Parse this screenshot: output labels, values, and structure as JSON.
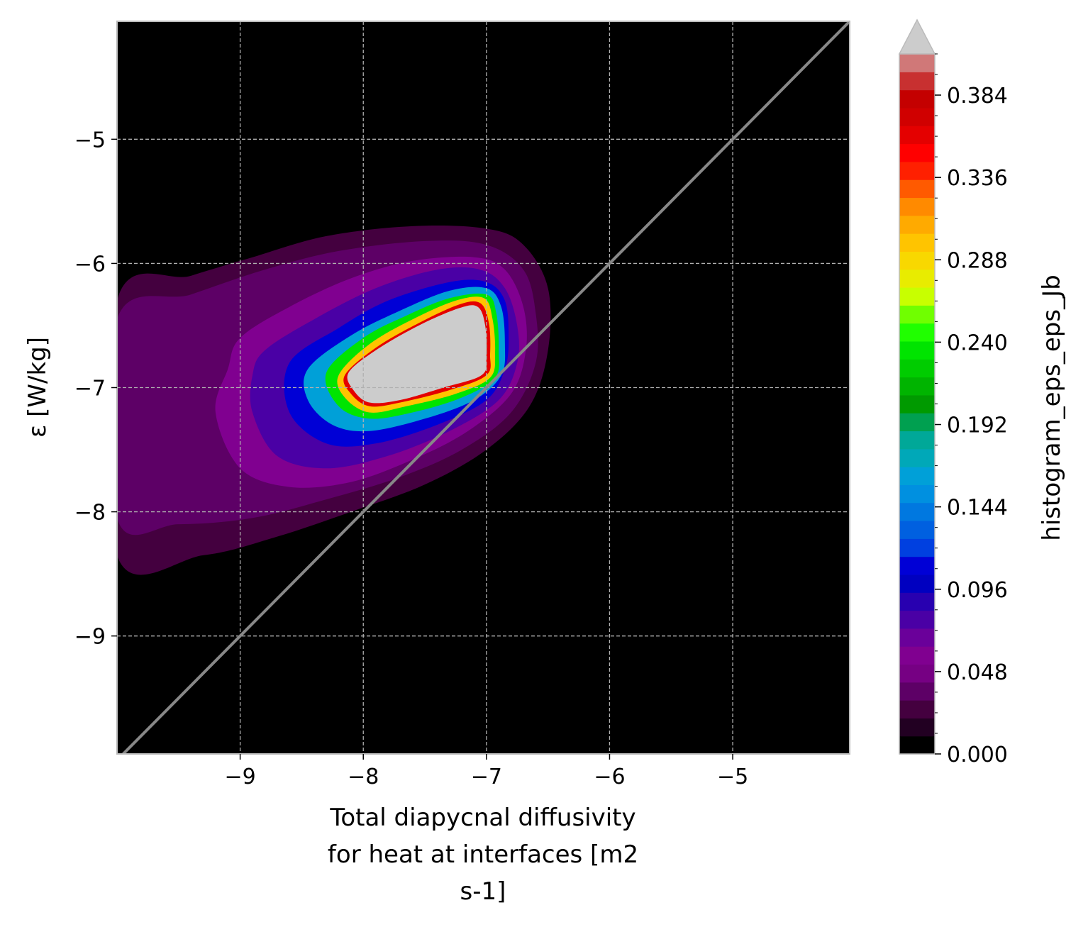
{
  "chart_data": {
    "type": "heatmap",
    "title": "",
    "xlabel_lines": [
      "Total diapycnal diffusivity",
      "for heat at interfaces [m2",
      "s-1]"
    ],
    "ylabel": "ε [W/kg]",
    "xlim": [
      -10,
      -4.05
    ],
    "ylim": [
      -9.95,
      -4.05
    ],
    "xticks": [
      -9,
      -8,
      -7,
      -6,
      -5
    ],
    "yticks": [
      -9,
      -8,
      -7,
      -6,
      -5
    ],
    "xtick_labels": [
      "−9",
      "−8",
      "−7",
      "−6",
      "−5"
    ],
    "ytick_labels": [
      "−9",
      "−8",
      "−7",
      "−6",
      "−5"
    ],
    "grid": true,
    "reference_line": {
      "from": [
        -10,
        -10
      ],
      "to": [
        -4,
        -4
      ],
      "color": "#888888"
    },
    "colorbar": {
      "label": "histogram_eps_eps_Jb",
      "vmin": 0.0,
      "vmax": 0.408,
      "extend": "max",
      "over_color": "#cccccc",
      "ticks": [
        0.0,
        0.048,
        0.096,
        0.144,
        0.192,
        0.24,
        0.288,
        0.336,
        0.384
      ],
      "tick_labels": [
        "0.000",
        "0.048",
        "0.096",
        "0.144",
        "0.192",
        "0.240",
        "0.288",
        "0.336",
        "0.384"
      ],
      "colors": [
        "#000000",
        "#220022",
        "#44003f",
        "#5d0066",
        "#760083",
        "#800090",
        "#6a009a",
        "#4a00a5",
        "#2800b0",
        "#0000c0",
        "#0000d6",
        "#0040e0",
        "#0060e0",
        "#0078e0",
        "#0090e0",
        "#00a0d8",
        "#00a8b8",
        "#00a898",
        "#00a050",
        "#009a00",
        "#00b400",
        "#00cc00",
        "#00e400",
        "#20ff00",
        "#70ff00",
        "#c8ff00",
        "#e8ec00",
        "#f8d800",
        "#ffc400",
        "#ffaa00",
        "#ff8a00",
        "#ff5a00",
        "#ff2000",
        "#ff0000",
        "#e40000",
        "#d00000",
        "#c40000",
        "#c83030",
        "#d07878"
      ]
    },
    "contours": [
      {
        "level": 0.008,
        "points": [
          [
            -10,
            -6.1
          ],
          [
            -9.3,
            -5.95
          ],
          [
            -8.8,
            -5.82
          ],
          [
            -8.3,
            -5.7
          ],
          [
            -7.5,
            -5.6
          ],
          [
            -6.9,
            -5.6
          ],
          [
            -6.6,
            -5.65
          ],
          [
            -6.4,
            -5.95
          ],
          [
            -6.38,
            -6.4
          ],
          [
            -6.45,
            -6.9
          ],
          [
            -6.7,
            -7.35
          ],
          [
            -7.1,
            -7.7
          ],
          [
            -7.6,
            -7.95
          ],
          [
            -8.2,
            -8.2
          ],
          [
            -8.7,
            -8.4
          ],
          [
            -9.3,
            -8.55
          ],
          [
            -10,
            -8.6
          ]
        ]
      },
      {
        "level": 0.024,
        "points": [
          [
            -10,
            -6.3
          ],
          [
            -9.4,
            -6.1
          ],
          [
            -8.9,
            -5.95
          ],
          [
            -8.3,
            -5.78
          ],
          [
            -7.6,
            -5.7
          ],
          [
            -7.0,
            -5.72
          ],
          [
            -6.7,
            -5.85
          ],
          [
            -6.5,
            -6.2
          ],
          [
            -6.5,
            -6.7
          ],
          [
            -6.65,
            -7.15
          ],
          [
            -7.0,
            -7.5
          ],
          [
            -7.5,
            -7.78
          ],
          [
            -8.1,
            -8.0
          ],
          [
            -8.7,
            -8.2
          ],
          [
            -9.3,
            -8.35
          ],
          [
            -10,
            -8.35
          ]
        ]
      },
      {
        "level": 0.04,
        "points": [
          [
            -10,
            -6.45
          ],
          [
            -9.4,
            -6.25
          ],
          [
            -8.8,
            -6.05
          ],
          [
            -8.2,
            -5.9
          ],
          [
            -7.5,
            -5.82
          ],
          [
            -7.0,
            -5.85
          ],
          [
            -6.7,
            -6.05
          ],
          [
            -6.6,
            -6.4
          ],
          [
            -6.6,
            -6.8
          ],
          [
            -6.8,
            -7.2
          ],
          [
            -7.2,
            -7.5
          ],
          [
            -7.7,
            -7.72
          ],
          [
            -8.3,
            -7.9
          ],
          [
            -8.9,
            -8.05
          ],
          [
            -9.5,
            -8.1
          ],
          [
            -10,
            -8.05
          ]
        ]
      },
      {
        "level": 0.056,
        "points": [
          [
            -9.0,
            -6.6
          ],
          [
            -8.6,
            -6.35
          ],
          [
            -8.1,
            -6.12
          ],
          [
            -7.6,
            -5.98
          ],
          [
            -7.1,
            -5.95
          ],
          [
            -6.85,
            -6.05
          ],
          [
            -6.7,
            -6.35
          ],
          [
            -6.68,
            -6.7
          ],
          [
            -6.8,
            -7.05
          ],
          [
            -7.15,
            -7.35
          ],
          [
            -7.6,
            -7.58
          ],
          [
            -8.1,
            -7.76
          ],
          [
            -8.6,
            -7.8
          ],
          [
            -9.0,
            -7.65
          ],
          [
            -9.2,
            -7.2
          ],
          [
            -9.1,
            -6.85
          ]
        ]
      },
      {
        "level": 0.08,
        "points": [
          [
            -8.8,
            -6.7
          ],
          [
            -8.4,
            -6.45
          ],
          [
            -7.9,
            -6.2
          ],
          [
            -7.4,
            -6.05
          ],
          [
            -7.05,
            -6.05
          ],
          [
            -6.85,
            -6.2
          ],
          [
            -6.75,
            -6.5
          ],
          [
            -6.75,
            -6.8
          ],
          [
            -6.9,
            -7.1
          ],
          [
            -7.3,
            -7.35
          ],
          [
            -7.8,
            -7.55
          ],
          [
            -8.3,
            -7.65
          ],
          [
            -8.7,
            -7.55
          ],
          [
            -8.9,
            -7.2
          ],
          [
            -8.9,
            -6.9
          ]
        ]
      },
      {
        "level": 0.112,
        "points": [
          [
            -8.6,
            -6.8
          ],
          [
            -8.2,
            -6.52
          ],
          [
            -7.8,
            -6.3
          ],
          [
            -7.3,
            -6.15
          ],
          [
            -7.0,
            -6.15
          ],
          [
            -6.85,
            -6.3
          ],
          [
            -6.82,
            -6.6
          ],
          [
            -6.85,
            -6.85
          ],
          [
            -7.0,
            -7.1
          ],
          [
            -7.4,
            -7.3
          ],
          [
            -7.9,
            -7.45
          ],
          [
            -8.3,
            -7.45
          ],
          [
            -8.6,
            -7.2
          ]
        ]
      },
      {
        "level": 0.16,
        "points": [
          [
            -8.45,
            -6.85
          ],
          [
            -8.1,
            -6.58
          ],
          [
            -7.7,
            -6.38
          ],
          [
            -7.3,
            -6.22
          ],
          [
            -7.0,
            -6.2
          ],
          [
            -6.88,
            -6.35
          ],
          [
            -6.85,
            -6.65
          ],
          [
            -6.88,
            -6.9
          ],
          [
            -7.1,
            -7.1
          ],
          [
            -7.5,
            -7.25
          ],
          [
            -7.95,
            -7.35
          ],
          [
            -8.25,
            -7.3
          ],
          [
            -8.45,
            -7.1
          ]
        ]
      },
      {
        "level": 0.24,
        "points": [
          [
            -8.3,
            -6.88
          ],
          [
            -8.0,
            -6.6
          ],
          [
            -7.65,
            -6.42
          ],
          [
            -7.3,
            -6.28
          ],
          [
            -7.0,
            -6.25
          ],
          [
            -6.92,
            -6.4
          ],
          [
            -6.9,
            -6.7
          ],
          [
            -6.93,
            -6.92
          ],
          [
            -7.2,
            -7.08
          ],
          [
            -7.6,
            -7.2
          ],
          [
            -7.95,
            -7.25
          ],
          [
            -8.2,
            -7.15
          ]
        ]
      },
      {
        "level": 0.3,
        "points": [
          [
            -8.2,
            -6.9
          ],
          [
            -7.95,
            -6.65
          ],
          [
            -7.6,
            -6.45
          ],
          [
            -7.25,
            -6.3
          ],
          [
            -7.02,
            -6.28
          ],
          [
            -6.95,
            -6.45
          ],
          [
            -6.93,
            -6.72
          ],
          [
            -6.97,
            -6.92
          ],
          [
            -7.25,
            -7.05
          ],
          [
            -7.65,
            -7.15
          ],
          [
            -7.95,
            -7.2
          ],
          [
            -8.15,
            -7.08
          ]
        ]
      },
      {
        "level": 0.36,
        "points": [
          [
            -8.15,
            -6.9
          ],
          [
            -7.9,
            -6.68
          ],
          [
            -7.55,
            -6.48
          ],
          [
            -7.22,
            -6.33
          ],
          [
            -7.05,
            -6.32
          ],
          [
            -6.98,
            -6.48
          ],
          [
            -6.97,
            -6.73
          ],
          [
            -7.0,
            -6.9
          ],
          [
            -7.3,
            -7.02
          ],
          [
            -7.7,
            -7.12
          ],
          [
            -7.95,
            -7.15
          ],
          [
            -8.1,
            -7.05
          ]
        ]
      },
      {
        "level": 0.42,
        "points": [
          [
            -8.12,
            -6.88
          ],
          [
            -7.9,
            -6.7
          ],
          [
            -7.55,
            -6.5
          ],
          [
            -7.22,
            -6.36
          ],
          [
            -7.07,
            -6.35
          ],
          [
            -7.01,
            -6.5
          ],
          [
            -7.0,
            -6.75
          ],
          [
            -7.04,
            -6.9
          ],
          [
            -7.35,
            -7.0
          ],
          [
            -7.7,
            -7.1
          ],
          [
            -7.95,
            -7.12
          ],
          [
            -8.08,
            -7.02
          ]
        ]
      }
    ]
  }
}
